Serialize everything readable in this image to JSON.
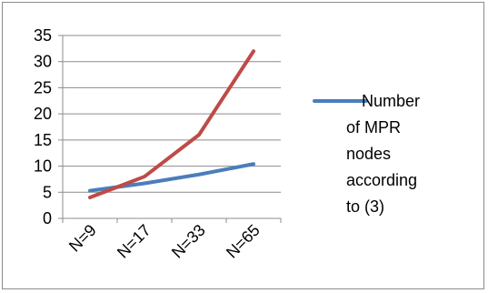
{
  "chart_data": {
    "type": "line",
    "categories": [
      "N=9",
      "N=17",
      "N=33",
      "N=65"
    ],
    "ylim": [
      0,
      35
    ],
    "yticks": [
      0,
      5,
      10,
      15,
      20,
      25,
      30,
      35
    ],
    "grid": "horizontal",
    "legend_position": "right",
    "series": [
      {
        "name": "Number of MPR nodes according to (3)",
        "legend_lines": [
          "Number",
          "of MPR",
          "nodes",
          "according",
          "to (3)"
        ],
        "color": "#4a7ebb",
        "values": [
          5.3,
          6.7,
          8.4,
          10.4
        ]
      },
      {
        "color": "#be4b48",
        "values": [
          4,
          8,
          16,
          32
        ]
      }
    ]
  }
}
